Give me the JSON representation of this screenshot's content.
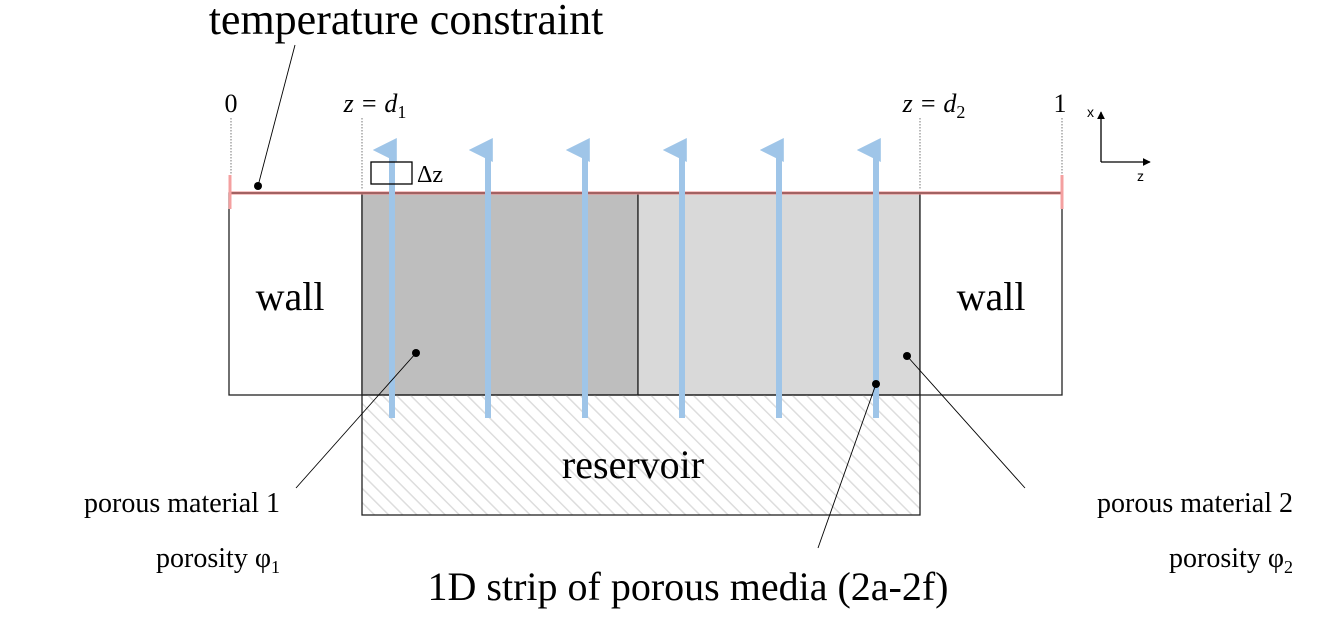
{
  "title": "temperature constraint",
  "markers": [
    {
      "text": "0"
    },
    {
      "text": "z = d",
      "sub": "1"
    },
    {
      "text": "z = d",
      "sub": "2"
    },
    {
      "text": "1"
    }
  ],
  "axes": {
    "x": "x",
    "z": "z"
  },
  "cell": "Δz",
  "regions": {
    "wall_left": "wall",
    "wall_right": "wall",
    "reservoir": "reservoir"
  },
  "labels": {
    "material1": "porous material 1",
    "porosity1": {
      "text": "porosity φ",
      "sub": "1"
    },
    "material2": "porous material 2",
    "porosity2": {
      "text": "porosity φ",
      "sub": "2"
    },
    "strip": "1D strip of porous media (2a-2f)"
  }
}
